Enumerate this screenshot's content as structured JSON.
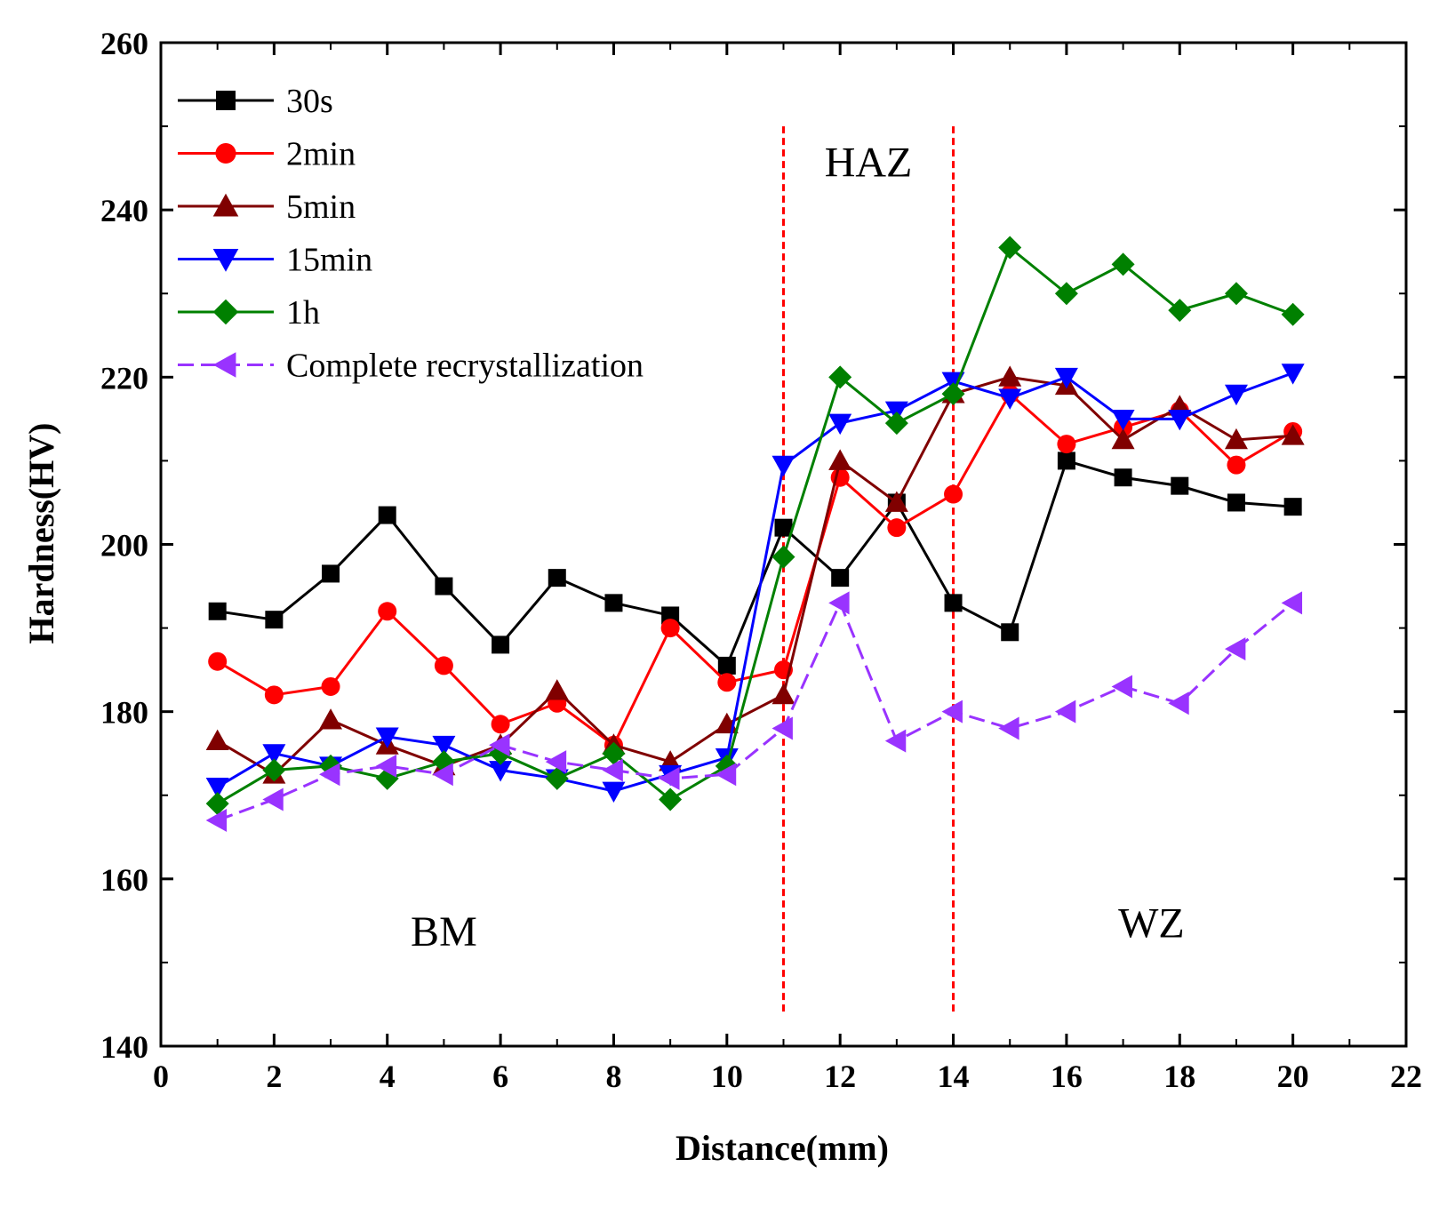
{
  "chart_data": {
    "type": "line",
    "title": "",
    "xlabel": "Distance(mm)",
    "ylabel": "Hardness(HV)",
    "xlim": [
      0,
      22
    ],
    "ylim": [
      140,
      260
    ],
    "x_ticks": [
      0,
      2,
      4,
      6,
      8,
      10,
      12,
      14,
      16,
      18,
      20,
      22
    ],
    "y_ticks": [
      140,
      160,
      180,
      200,
      220,
      240,
      260
    ],
    "legend_position": "top-left",
    "grid": false,
    "x": [
      1,
      2,
      3,
      4,
      5,
      6,
      7,
      8,
      9,
      10,
      11,
      12,
      13,
      14,
      15,
      16,
      17,
      18,
      19,
      20
    ],
    "series": [
      {
        "name": "30s",
        "color": "#000000",
        "marker": "square",
        "values": [
          192,
          191,
          196.5,
          203.5,
          195,
          188,
          196,
          193,
          191.5,
          185.5,
          202,
          196,
          205,
          193,
          189.5,
          210,
          208,
          207,
          205,
          204.5
        ]
      },
      {
        "name": "2min",
        "color": "#ff0000",
        "marker": "circle",
        "values": [
          186,
          182,
          183,
          192,
          185.5,
          178.5,
          181,
          176,
          190,
          183.5,
          185,
          208,
          202,
          206,
          218,
          212,
          214,
          216,
          209.5,
          213.5
        ]
      },
      {
        "name": "5min",
        "color": "#800000",
        "marker": "triangle-up",
        "values": [
          176.5,
          172.5,
          179,
          176,
          173.5,
          176,
          182.5,
          176,
          174,
          178.5,
          182,
          210,
          205,
          218,
          220,
          219,
          212.5,
          216.5,
          212.5,
          213
        ]
      },
      {
        "name": "15min",
        "color": "#0000ff",
        "marker": "triangle-down",
        "values": [
          171,
          175,
          173.5,
          177,
          176,
          173,
          172,
          170.5,
          172.5,
          174.5,
          209.5,
          214.5,
          216,
          219.5,
          217.5,
          220,
          215,
          215,
          218,
          220.5
        ]
      },
      {
        "name": "1h",
        "color": "#008000",
        "marker": "diamond",
        "values": [
          169,
          173,
          173.5,
          172,
          174,
          175,
          172,
          175,
          169.5,
          173.5,
          198.5,
          220,
          214.5,
          218,
          235.5,
          230,
          233.5,
          228,
          230,
          227.5
        ]
      },
      {
        "name": "Complete recrystallization",
        "color": "#9933ff",
        "marker": "triangle-left",
        "values": [
          167,
          169.5,
          172.5,
          173.5,
          172.5,
          176,
          174,
          173,
          172,
          172.5,
          178,
          193,
          176.5,
          180,
          178,
          180,
          183,
          181,
          187.5,
          193
        ]
      }
    ],
    "annotations": [
      {
        "text": "HAZ",
        "x": 12.5,
        "y": 244
      },
      {
        "text": "BM",
        "x": 5,
        "y": 152
      },
      {
        "text": "WZ",
        "x": 17.5,
        "y": 153
      }
    ],
    "reference_lines": [
      {
        "x": 11,
        "color": "#ff0000",
        "style": "dashed"
      },
      {
        "x": 14,
        "color": "#ff0000",
        "style": "dashed"
      }
    ]
  }
}
